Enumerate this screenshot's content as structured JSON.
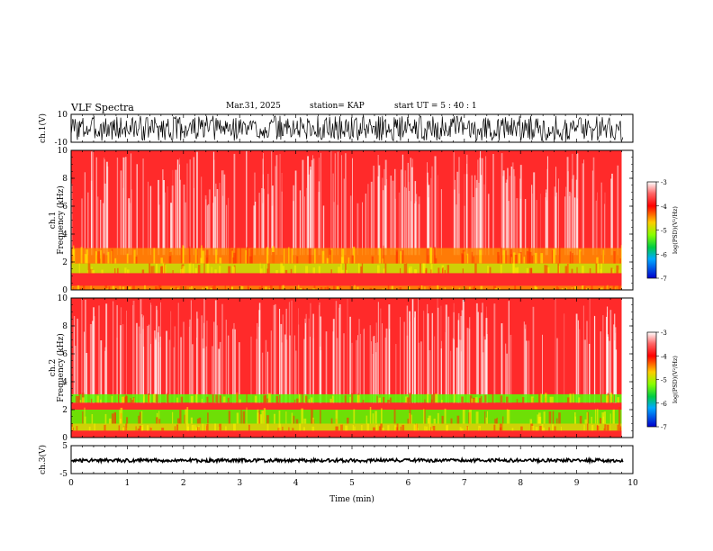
{
  "header": {
    "title": "VLF Spectra",
    "date": "Mar.31, 2025",
    "station": "station= KAP",
    "start": "start UT =  5 : 40 : 1"
  },
  "colors": {
    "spectrogram_background": "#ff2a2a",
    "hiss_band": "#ffd000",
    "strong_emission": "#55ff00",
    "waveform": "#000000"
  },
  "chart_data": [
    {
      "type": "line",
      "name": "ch1-waveform",
      "ylabel": "ch.1(V)",
      "ylim": [
        -10,
        10
      ],
      "yticks": [
        {
          "value": 10,
          "label": "10"
        },
        {
          "value": -10,
          "label": "-10"
        }
      ],
      "xlim": [
        0,
        10
      ],
      "note_signal": "noisy waveform oscillating roughly between -8 and 8 V"
    },
    {
      "type": "heatmap",
      "name": "ch1-spectrogram",
      "ylabel_line1": "ch.1",
      "ylabel_line2": "Frequency (kHz)",
      "ylim": [
        0,
        10
      ],
      "yticks": [
        {
          "value": 0,
          "label": "0"
        },
        {
          "value": 2,
          "label": "2"
        },
        {
          "value": 4,
          "label": "4"
        },
        {
          "value": 6,
          "label": "6"
        },
        {
          "value": 8,
          "label": "8"
        },
        {
          "value": 10,
          "label": "10"
        }
      ],
      "xlim": [
        0,
        10
      ],
      "data_end_min": 9.8,
      "bands": [
        {
          "low": 0.0,
          "high": 0.3,
          "level": "orange"
        },
        {
          "low": 1.2,
          "high": 1.9,
          "level": "yellow-green"
        },
        {
          "low": 1.9,
          "high": 3.0,
          "level": "orange"
        }
      ],
      "colorbar": {
        "label": "log(PSD)(V²/Hz)",
        "ticks": [
          {
            "value": -3,
            "label": "-3"
          },
          {
            "value": -4,
            "label": "-4"
          },
          {
            "value": -5,
            "label": "-5"
          },
          {
            "value": -6,
            "label": "-6"
          },
          {
            "value": -7,
            "label": "-7"
          }
        ],
        "range": [
          -7,
          -3
        ]
      }
    },
    {
      "type": "heatmap",
      "name": "ch2-spectrogram",
      "ylabel_line1": "ch.2",
      "ylabel_line2": "Frequency (kHz)",
      "ylim": [
        0,
        10
      ],
      "yticks": [
        {
          "value": 0,
          "label": "0"
        },
        {
          "value": 2,
          "label": "2"
        },
        {
          "value": 4,
          "label": "4"
        },
        {
          "value": 6,
          "label": "6"
        },
        {
          "value": 8,
          "label": "8"
        },
        {
          "value": 10,
          "label": "10"
        }
      ],
      "xlim": [
        0,
        10
      ],
      "data_end_min": 9.8,
      "bands": [
        {
          "low": 0.5,
          "high": 1.0,
          "level": "yellow-green"
        },
        {
          "low": 1.0,
          "high": 2.0,
          "level": "green"
        },
        {
          "low": 2.5,
          "high": 3.1,
          "level": "green"
        }
      ],
      "colorbar": {
        "label": "log(PSD)(V²/Hz)",
        "ticks": [
          {
            "value": -3,
            "label": "-3"
          },
          {
            "value": -4,
            "label": "-4"
          },
          {
            "value": -5,
            "label": "-5"
          },
          {
            "value": -6,
            "label": "-6"
          },
          {
            "value": -7,
            "label": "-7"
          }
        ],
        "range": [
          -7,
          -3
        ]
      }
    },
    {
      "type": "line",
      "name": "ch3-waveform",
      "ylabel": "ch.3(V)",
      "ylim": [
        -5,
        5
      ],
      "yticks": [
        {
          "value": 5,
          "label": "5"
        },
        {
          "value": -5,
          "label": "-5"
        }
      ],
      "xlim": [
        0,
        10
      ],
      "note_signal": "near-constant signal around 0 V"
    }
  ],
  "time_axis": {
    "xlabel": "Time (min)",
    "ticks": [
      {
        "value": 0,
        "label": "0"
      },
      {
        "value": 1,
        "label": "1"
      },
      {
        "value": 2,
        "label": "2"
      },
      {
        "value": 3,
        "label": "3"
      },
      {
        "value": 4,
        "label": "4"
      },
      {
        "value": 5,
        "label": "5"
      },
      {
        "value": 6,
        "label": "6"
      },
      {
        "value": 7,
        "label": "7"
      },
      {
        "value": 8,
        "label": "8"
      },
      {
        "value": 9,
        "label": "9"
      },
      {
        "value": 10,
        "label": "10"
      }
    ]
  }
}
